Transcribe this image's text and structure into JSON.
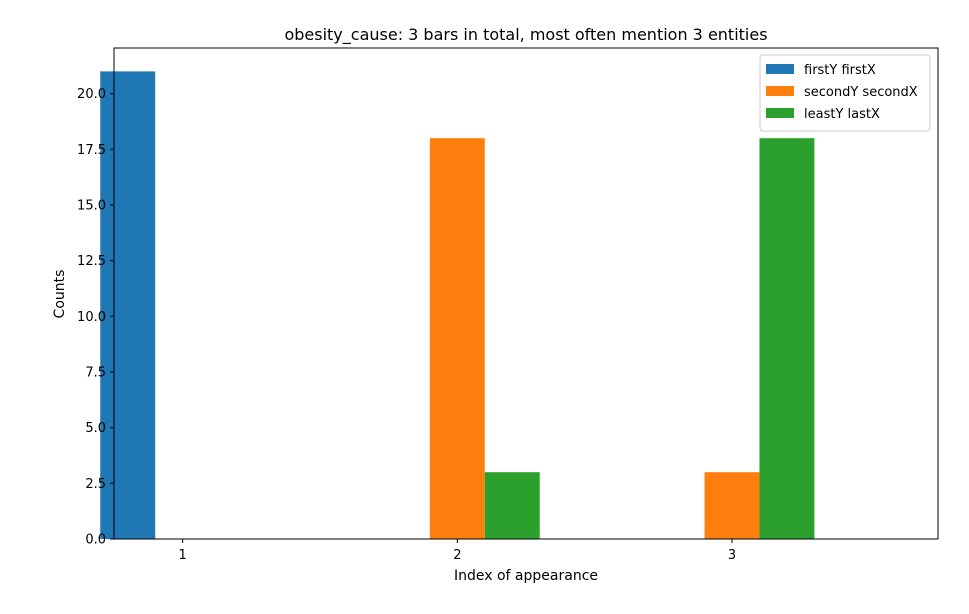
{
  "chart_data": {
    "type": "bar",
    "title": "obesity_cause: 3 bars in total, most often mention  3 entities",
    "xlabel": "Index of appearance",
    "ylabel": "Counts",
    "categories": [
      "1",
      "2",
      "3"
    ],
    "ylim": [
      0,
      22.05
    ],
    "yticks": [
      "0.0",
      "2.5",
      "5.0",
      "7.5",
      "10.0",
      "12.5",
      "15.0",
      "17.5",
      "20.0"
    ],
    "ytick_values": [
      0,
      2.5,
      5,
      7.5,
      10,
      12.5,
      15,
      17.5,
      20
    ],
    "grid": false,
    "legend_position": "top-right",
    "series": [
      {
        "name": "firstY firstX",
        "color": "#1f77b4",
        "values": [
          21,
          0,
          0
        ]
      },
      {
        "name": "secondY secondX",
        "color": "#ff7f0e",
        "values": [
          0,
          18,
          3
        ]
      },
      {
        "name": "leastY lastX",
        "color": "#2ca02c",
        "values": [
          0,
          3,
          18
        ]
      }
    ]
  }
}
